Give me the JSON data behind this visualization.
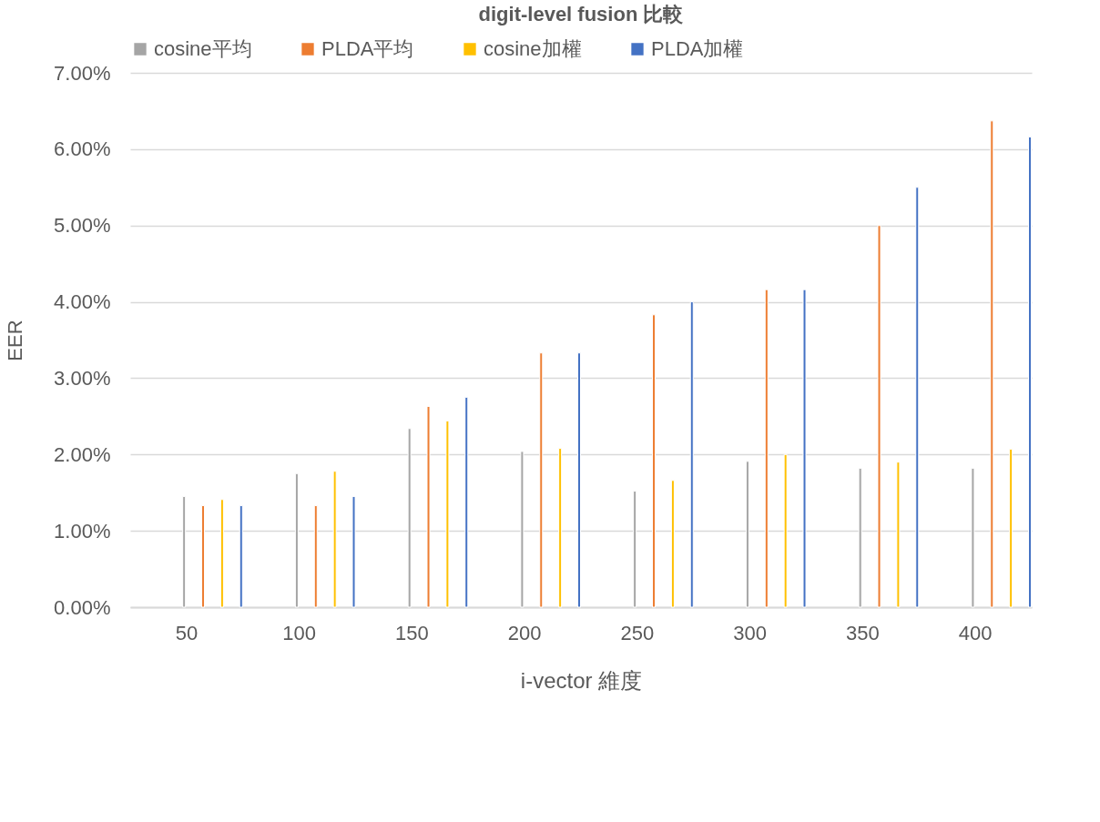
{
  "chart_data": {
    "type": "bar",
    "title": "digit-level fusion 比較",
    "xlabel": "i-vector 維度",
    "ylabel": "EER",
    "categories": [
      "50",
      "100",
      "150",
      "200",
      "250",
      "300",
      "350",
      "400"
    ],
    "series": [
      {
        "name": "cosine平均",
        "color": "#a5a5a5",
        "values": [
          1.45,
          1.75,
          2.34,
          2.04,
          1.52,
          1.91,
          1.82,
          1.82
        ]
      },
      {
        "name": "PLDA平均",
        "color": "#ed7d31",
        "values": [
          1.33,
          1.33,
          2.63,
          3.33,
          3.83,
          4.16,
          5.0,
          6.37
        ]
      },
      {
        "name": "cosine加權",
        "color": "#ffc000",
        "values": [
          1.41,
          1.78,
          2.44,
          2.08,
          1.66,
          2.0,
          1.9,
          2.07
        ]
      },
      {
        "name": "PLDA加權",
        "color": "#4472c4",
        "values": [
          1.33,
          1.45,
          2.75,
          3.33,
          4.0,
          4.16,
          5.5,
          6.16
        ]
      }
    ],
    "ylim": [
      0,
      7
    ],
    "yticks": [
      {
        "value": 0,
        "label": "0.00%"
      },
      {
        "value": 1,
        "label": "1.00%"
      },
      {
        "value": 2,
        "label": "2.00%"
      },
      {
        "value": 3,
        "label": "3.00%"
      },
      {
        "value": 4,
        "label": "4.00%"
      },
      {
        "value": 5,
        "label": "5.00%"
      },
      {
        "value": 6,
        "label": "6.00%"
      },
      {
        "value": 7,
        "label": "7.00%"
      }
    ],
    "grid": "y",
    "legend": "top"
  }
}
